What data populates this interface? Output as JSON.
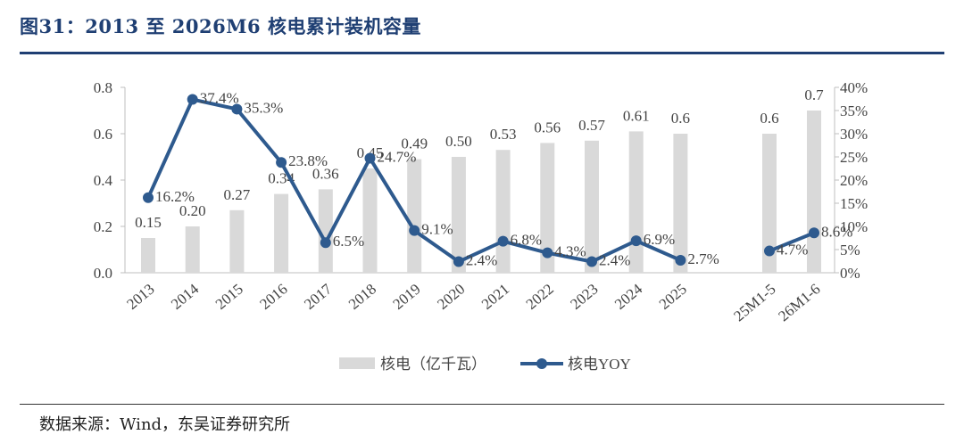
{
  "figure": {
    "title": "图31：2013 至 2026M6 核电累计装机容量",
    "source": "数据来源：Wind，东吴证券研究所"
  },
  "colors": {
    "bar": "#d9d9d9",
    "line": "#2e5a8e",
    "title": "#1f3f73"
  },
  "chart_data": {
    "type": "bar",
    "categories": [
      "2013",
      "2014",
      "2015",
      "2016",
      "2017",
      "2018",
      "2019",
      "2020",
      "2021",
      "2022",
      "2023",
      "2024",
      "2025",
      "25M1-5",
      "26M1-6"
    ],
    "series": [
      {
        "name": "核电（亿千瓦）",
        "type": "bar",
        "axis": "left",
        "values": [
          0.15,
          0.2,
          0.27,
          0.34,
          0.36,
          0.45,
          0.49,
          0.5,
          0.53,
          0.56,
          0.57,
          0.61,
          0.6,
          0.6,
          0.7
        ],
        "labels": [
          "0.15",
          "0.20",
          "0.27",
          "0.34",
          "0.36",
          "0.45",
          "0.49",
          "0.50",
          "0.53",
          "0.56",
          "0.57",
          "0.61",
          "0.6",
          "0.6",
          "0.7"
        ]
      },
      {
        "name": "核电YOY",
        "type": "line",
        "axis": "right",
        "values": [
          16.2,
          37.4,
          35.3,
          23.8,
          6.5,
          24.7,
          9.1,
          2.4,
          6.8,
          4.3,
          2.4,
          6.9,
          2.7,
          4.7,
          8.6
        ],
        "labels": [
          "16.2%",
          "37.4%",
          "35.3%",
          "23.8%",
          "6.5%",
          "24.7%",
          "9.1%",
          "2.4%",
          "6.8%",
          "4.3%",
          "2.4%",
          "6.9%",
          "2.7%",
          "4.7%",
          "8.6%"
        ],
        "line_breaks_after": "2025"
      }
    ],
    "y_left": {
      "ylim": [
        0,
        0.8
      ],
      "ticks": [
        "0.0",
        "0.2",
        "0.4",
        "0.6",
        "0.8"
      ]
    },
    "y_right": {
      "ylim": [
        0,
        40
      ],
      "ticks": [
        "0%",
        "5%",
        "10%",
        "15%",
        "20%",
        "25%",
        "30%",
        "35%",
        "40%"
      ]
    },
    "legend": {
      "placement": "bottom-center",
      "items": [
        "核电（亿千瓦）",
        "核电YOY"
      ]
    },
    "grid": false
  }
}
